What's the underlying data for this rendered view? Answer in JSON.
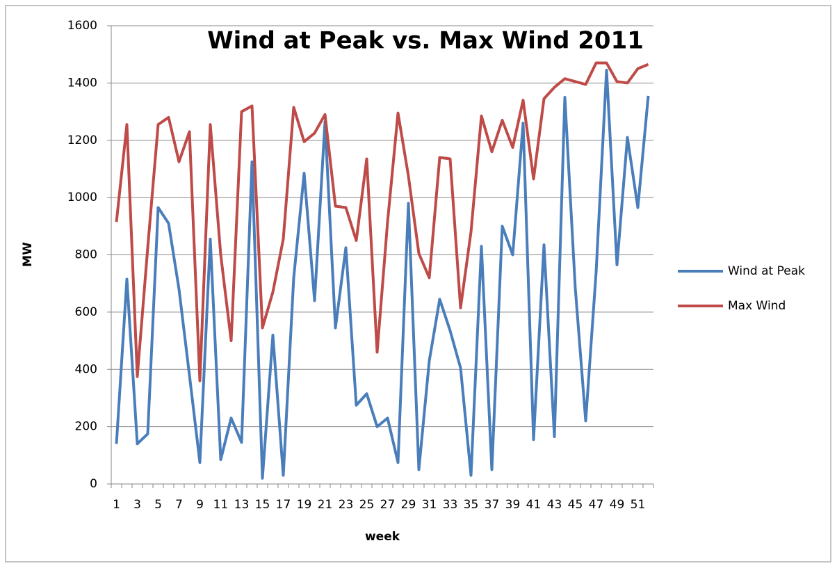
{
  "chart_data": {
    "type": "line",
    "title": "Wind at Peak vs. Max Wind 2011",
    "x_label": "week",
    "y_label": "MW",
    "categories": [
      "1",
      null,
      "3",
      null,
      "5",
      null,
      "7",
      null,
      "9",
      null,
      "11",
      null,
      "13",
      null,
      "15",
      null,
      "17",
      null,
      "19",
      null,
      "21",
      null,
      "23",
      null,
      "25",
      null,
      "27",
      null,
      "29",
      null,
      "31",
      null,
      "33",
      null,
      "35",
      null,
      "37",
      null,
      "39",
      null,
      "41",
      null,
      "43",
      null,
      "45",
      null,
      "47",
      null,
      "49",
      null,
      "51",
      null
    ],
    "series": [
      {
        "name": "Wind at Peak",
        "color": "#4a7ebb",
        "values": [
          140,
          715,
          140,
          175,
          965,
          910,
          680,
          380,
          75,
          855,
          85,
          230,
          145,
          1125,
          20,
          520,
          30,
          720,
          1085,
          640,
          1265,
          545,
          825,
          275,
          315,
          200,
          230,
          75,
          980,
          50,
          430,
          645,
          535,
          405,
          30,
          830,
          50,
          900,
          800,
          1260,
          155,
          835,
          165,
          1350,
          685,
          220,
          740,
          1445,
          765,
          1210,
          965,
          1355
        ]
      },
      {
        "name": "Max Wind",
        "color": "#be4b48",
        "values": [
          915,
          1255,
          375,
          825,
          1255,
          1280,
          1125,
          1230,
          360,
          1255,
          800,
          500,
          1300,
          1320,
          545,
          670,
          855,
          1315,
          1195,
          1225,
          1290,
          970,
          965,
          850,
          1135,
          460,
          915,
          1295,
          1075,
          805,
          720,
          1140,
          1135,
          615,
          880,
          1285,
          1160,
          1270,
          1175,
          1340,
          1065,
          1345,
          1385,
          1415,
          1405,
          1395,
          1470,
          1470,
          1405,
          1400,
          1450,
          1465
        ]
      }
    ],
    "ylim": [
      0,
      1600
    ],
    "yticks": [
      0,
      200,
      400,
      600,
      800,
      1000,
      1200,
      1400,
      1600
    ],
    "grid": true,
    "legend": "right"
  }
}
